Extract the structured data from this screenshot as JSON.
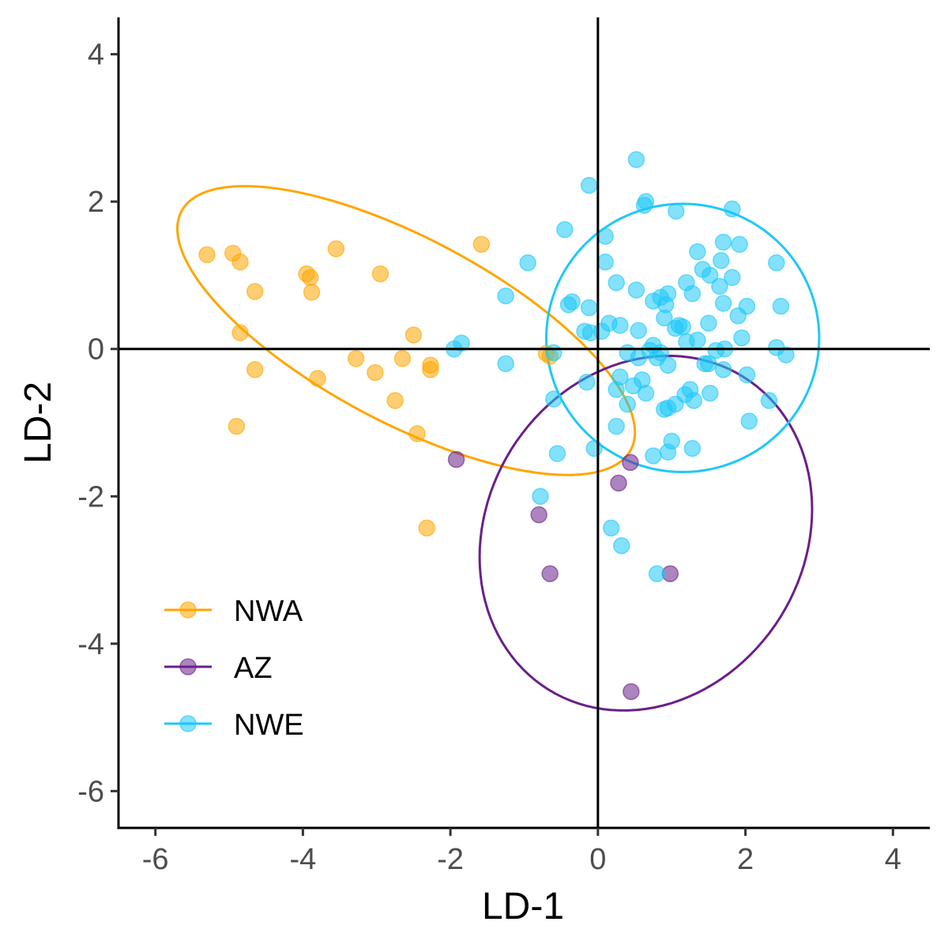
{
  "chart_data": {
    "type": "scatter",
    "xlabel": "LD-1",
    "ylabel": "LD-2",
    "xlim": [
      -6.5,
      4.5
    ],
    "ylim": [
      -6.5,
      4.5
    ],
    "x_ticks": [
      -6,
      -4,
      -2,
      0,
      2,
      4
    ],
    "y_ticks": [
      -6,
      -4,
      -2,
      0,
      2,
      4
    ],
    "x_tick_labels": [
      "-6",
      "-4",
      "-2",
      "0",
      "2",
      "4"
    ],
    "y_tick_labels": [
      "-6",
      "-4",
      "-2",
      "0",
      "2",
      "4"
    ],
    "grid": false,
    "reference_lines": {
      "x": 0,
      "y": 0
    },
    "legend_position": "bottom-left",
    "series": [
      {
        "name": "NWA",
        "color": "#FFA500",
        "ellipse": {
          "center": [
            -2.6,
            0.25
          ],
          "rx": 3.45,
          "ry": 1.25,
          "angle_deg": -28
        },
        "points": [
          [
            -5.3,
            1.28
          ],
          [
            -4.95,
            1.3
          ],
          [
            -4.85,
            1.18
          ],
          [
            -4.85,
            0.22
          ],
          [
            -4.65,
            0.78
          ],
          [
            -4.65,
            -0.28
          ],
          [
            -4.9,
            -1.05
          ],
          [
            -3.95,
            1.02
          ],
          [
            -3.9,
            0.97
          ],
          [
            -3.88,
            0.77
          ],
          [
            -3.8,
            -0.4
          ],
          [
            -3.55,
            1.36
          ],
          [
            -3.28,
            -0.13
          ],
          [
            -3.02,
            -0.32
          ],
          [
            -2.95,
            1.02
          ],
          [
            -2.75,
            -0.7
          ],
          [
            -2.65,
            -0.13
          ],
          [
            -2.5,
            0.19
          ],
          [
            -2.45,
            -1.15
          ],
          [
            -2.27,
            -0.22
          ],
          [
            -2.27,
            -0.28
          ],
          [
            -2.32,
            -2.43
          ],
          [
            -1.58,
            1.42
          ],
          [
            -0.65,
            -0.1
          ],
          [
            -0.7,
            -0.06
          ]
        ]
      },
      {
        "name": "AZ",
        "color": "#6A2089",
        "ellipse": {
          "center": [
            0.65,
            -2.5
          ],
          "rx": 2.5,
          "ry": 2.15,
          "angle_deg": 58
        },
        "points": [
          [
            -1.92,
            -1.5
          ],
          [
            -0.8,
            -2.25
          ],
          [
            -0.65,
            -3.05
          ],
          [
            0.44,
            -1.54
          ],
          [
            0.28,
            -1.82
          ],
          [
            0.98,
            -3.05
          ],
          [
            0.45,
            -4.65
          ]
        ]
      },
      {
        "name": "NWE",
        "color": "#1EC8F8",
        "ellipse": {
          "center": [
            1.15,
            0.15
          ],
          "rx": 1.85,
          "ry": 1.82,
          "angle_deg": 0
        },
        "points": [
          [
            0.52,
            2.57
          ],
          [
            -0.12,
            2.22
          ],
          [
            0.65,
            2.0
          ],
          [
            0.63,
            1.95
          ],
          [
            1.06,
            1.87
          ],
          [
            1.82,
            1.9
          ],
          [
            -0.45,
            1.62
          ],
          [
            0.1,
            1.53
          ],
          [
            1.7,
            1.45
          ],
          [
            1.92,
            1.42
          ],
          [
            2.42,
            1.17
          ],
          [
            -0.95,
            1.17
          ],
          [
            0.1,
            1.18
          ],
          [
            1.35,
            1.32
          ],
          [
            1.67,
            1.2
          ],
          [
            1.42,
            1.08
          ],
          [
            1.52,
            1.0
          ],
          [
            1.82,
            0.97
          ],
          [
            0.25,
            0.9
          ],
          [
            1.2,
            0.9
          ],
          [
            1.65,
            0.85
          ],
          [
            0.52,
            0.8
          ],
          [
            0.95,
            0.75
          ],
          [
            1.28,
            0.75
          ],
          [
            -1.25,
            0.72
          ],
          [
            -0.4,
            0.6
          ],
          [
            -0.35,
            0.64
          ],
          [
            -0.12,
            0.56
          ],
          [
            0.75,
            0.65
          ],
          [
            0.85,
            0.7
          ],
          [
            0.92,
            0.6
          ],
          [
            1.7,
            0.62
          ],
          [
            2.02,
            0.58
          ],
          [
            2.48,
            0.58
          ],
          [
            0.9,
            0.42
          ],
          [
            1.1,
            0.32
          ],
          [
            1.15,
            0.3
          ],
          [
            1.9,
            0.45
          ],
          [
            0.15,
            0.35
          ],
          [
            0.3,
            0.32
          ],
          [
            1.5,
            0.35
          ],
          [
            -0.18,
            0.24
          ],
          [
            -0.1,
            0.22
          ],
          [
            0.05,
            0.24
          ],
          [
            0.55,
            0.25
          ],
          [
            1.05,
            0.28
          ],
          [
            1.2,
            0.1
          ],
          [
            1.35,
            0.12
          ],
          [
            1.95,
            0.15
          ],
          [
            2.42,
            0.02
          ],
          [
            2.55,
            -0.08
          ],
          [
            -1.95,
            0.0
          ],
          [
            -1.85,
            0.08
          ],
          [
            -0.6,
            -0.05
          ],
          [
            0.7,
            -0.02
          ],
          [
            0.75,
            0.05
          ],
          [
            0.85,
            -0.05
          ],
          [
            1.6,
            -0.02
          ],
          [
            1.5,
            -0.2
          ],
          [
            1.72,
            0.0
          ],
          [
            0.4,
            -0.05
          ],
          [
            0.55,
            -0.12
          ],
          [
            0.8,
            -0.12
          ],
          [
            0.95,
            -0.22
          ],
          [
            1.45,
            -0.2
          ],
          [
            1.7,
            -0.28
          ],
          [
            2.02,
            -0.35
          ],
          [
            -1.25,
            -0.2
          ],
          [
            0.3,
            -0.38
          ],
          [
            0.6,
            -0.42
          ],
          [
            -0.15,
            -0.45
          ],
          [
            0.48,
            -0.5
          ],
          [
            0.65,
            -0.6
          ],
          [
            0.25,
            -0.55
          ],
          [
            1.18,
            -0.62
          ],
          [
            1.25,
            -0.55
          ],
          [
            1.52,
            -0.6
          ],
          [
            2.32,
            -0.7
          ],
          [
            -0.6,
            -0.68
          ],
          [
            0.4,
            -0.75
          ],
          [
            0.95,
            -0.8
          ],
          [
            1.05,
            -0.75
          ],
          [
            1.3,
            -0.7
          ],
          [
            0.9,
            -0.82
          ],
          [
            2.05,
            -0.98
          ],
          [
            0.25,
            -1.05
          ],
          [
            1.0,
            -1.25
          ],
          [
            1.28,
            -1.35
          ],
          [
            -0.05,
            -1.35
          ],
          [
            -0.55,
            -1.42
          ],
          [
            0.75,
            -1.45
          ],
          [
            0.95,
            -1.4
          ],
          [
            -0.78,
            -2.0
          ],
          [
            0.18,
            -2.43
          ],
          [
            0.32,
            -2.67
          ],
          [
            0.8,
            -3.05
          ]
        ]
      }
    ]
  }
}
